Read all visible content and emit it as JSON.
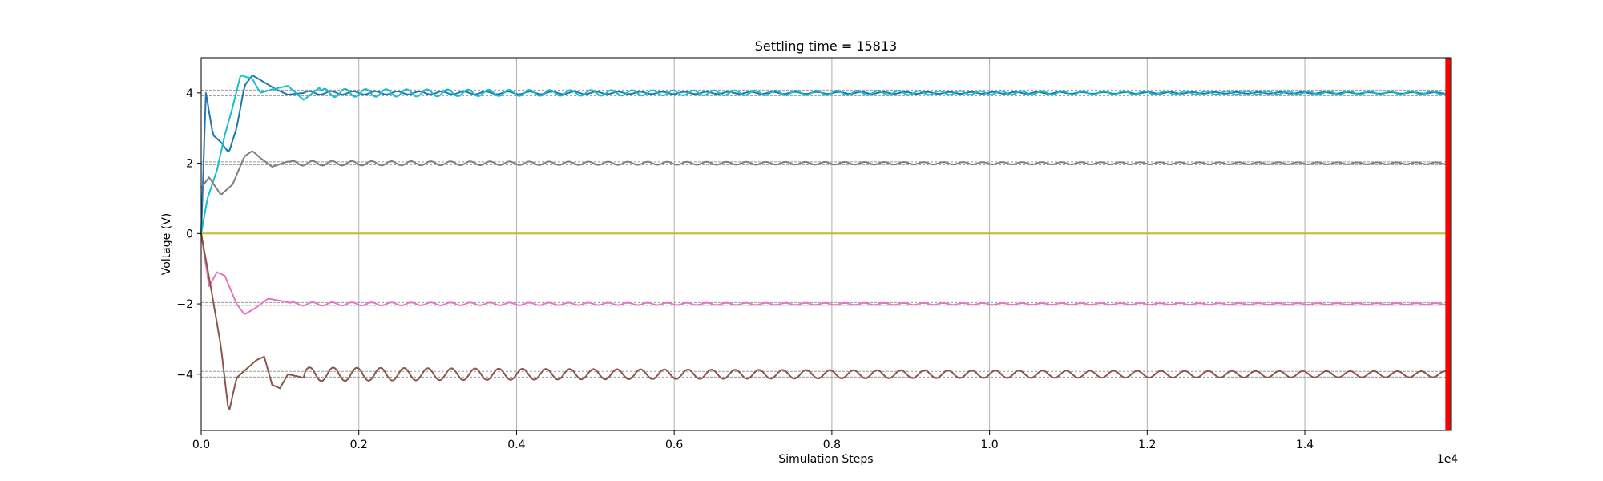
{
  "chart_data": {
    "type": "line",
    "title": "Settling time = 15813",
    "xlabel": "Simulation Steps",
    "ylabel": "Voltage (V)",
    "x_scale_label": "1e4",
    "xlim": [
      0,
      15850
    ],
    "ylim": [
      -5.6,
      5.0
    ],
    "x_ticks": [
      0,
      2000,
      4000,
      6000,
      8000,
      10000,
      12000,
      14000
    ],
    "x_tick_labels": [
      "0.0",
      "0.2",
      "0.4",
      "0.6",
      "0.8",
      "1.0",
      "1.2",
      "1.4"
    ],
    "y_ticks": [
      -4,
      -2,
      0,
      2,
      4
    ],
    "y_tick_labels": [
      "−4",
      "−2",
      "0",
      "2",
      "4"
    ],
    "grid": "x",
    "settling_time": 15813,
    "settling_marker_color": "#ff0000",
    "tolerance_bands": [
      {
        "lower": 3.92,
        "upper": 4.08,
        "color": "#999999"
      },
      {
        "lower": 1.96,
        "upper": 2.04,
        "color": "#999999"
      },
      {
        "lower": -2.04,
        "upper": -1.96,
        "color": "#999999"
      },
      {
        "lower": -4.08,
        "upper": -3.92,
        "color": "#999999"
      }
    ],
    "series": [
      {
        "target": 4,
        "color": "#1f77b4",
        "knots": [
          [
            0,
            0
          ],
          [
            60,
            4.0
          ],
          [
            150,
            2.8
          ],
          [
            250,
            2.6
          ],
          [
            350,
            2.3
          ],
          [
            450,
            3.0
          ],
          [
            550,
            4.2
          ],
          [
            650,
            4.5
          ],
          [
            800,
            4.3
          ],
          [
            950,
            4.1
          ],
          [
            1100,
            3.95
          ],
          [
            1300,
            4.0
          ]
        ],
        "osc_amp": 0.05,
        "osc_period": 280,
        "decay": 6000
      },
      {
        "target": 4,
        "color": "#17becf",
        "knots": [
          [
            0,
            0
          ],
          [
            80,
            1.0
          ],
          [
            200,
            1.8
          ],
          [
            300,
            2.8
          ],
          [
            400,
            3.6
          ],
          [
            500,
            4.5
          ],
          [
            650,
            4.4
          ],
          [
            750,
            4.0
          ],
          [
            900,
            4.1
          ],
          [
            1100,
            4.2
          ],
          [
            1300,
            3.8
          ],
          [
            1500,
            4.15
          ]
        ],
        "osc_amp": 0.12,
        "osc_period": 260,
        "decay": 5000
      },
      {
        "target": 2,
        "color": "#7f7f7f",
        "knots": [
          [
            0,
            1.3
          ],
          [
            100,
            1.6
          ],
          [
            250,
            1.1
          ],
          [
            400,
            1.4
          ],
          [
            550,
            2.2
          ],
          [
            650,
            2.35
          ],
          [
            750,
            2.15
          ],
          [
            900,
            1.9
          ],
          [
            1100,
            2.05
          ]
        ],
        "osc_amp": 0.07,
        "osc_period": 250,
        "decay": 5500
      },
      {
        "target": 0,
        "color": "#bcbd22",
        "knots": [
          [
            0,
            0
          ],
          [
            15850,
            0
          ]
        ],
        "osc_amp": 0.0,
        "osc_period": 300,
        "decay": 5000
      },
      {
        "target": -2,
        "color": "#e377c2",
        "knots": [
          [
            0,
            0
          ],
          [
            100,
            -1.5
          ],
          [
            200,
            -1.1
          ],
          [
            300,
            -1.2
          ],
          [
            450,
            -2.0
          ],
          [
            550,
            -2.3
          ],
          [
            700,
            -2.1
          ],
          [
            850,
            -1.85
          ],
          [
            1100,
            -1.95
          ]
        ],
        "osc_amp": 0.05,
        "osc_period": 250,
        "decay": 6000
      },
      {
        "target": -4,
        "color": "#8c564b",
        "knots": [
          [
            0,
            0
          ],
          [
            120,
            -1.5
          ],
          [
            250,
            -3.2
          ],
          [
            350,
            -5.1
          ],
          [
            450,
            -4.1
          ],
          [
            550,
            -3.9
          ],
          [
            700,
            -3.6
          ],
          [
            800,
            -3.5
          ],
          [
            900,
            -4.3
          ],
          [
            1000,
            -4.4
          ],
          [
            1100,
            -4.0
          ],
          [
            1300,
            -4.1
          ]
        ],
        "osc_amp": 0.2,
        "osc_period": 300,
        "decay": 7000
      }
    ]
  }
}
